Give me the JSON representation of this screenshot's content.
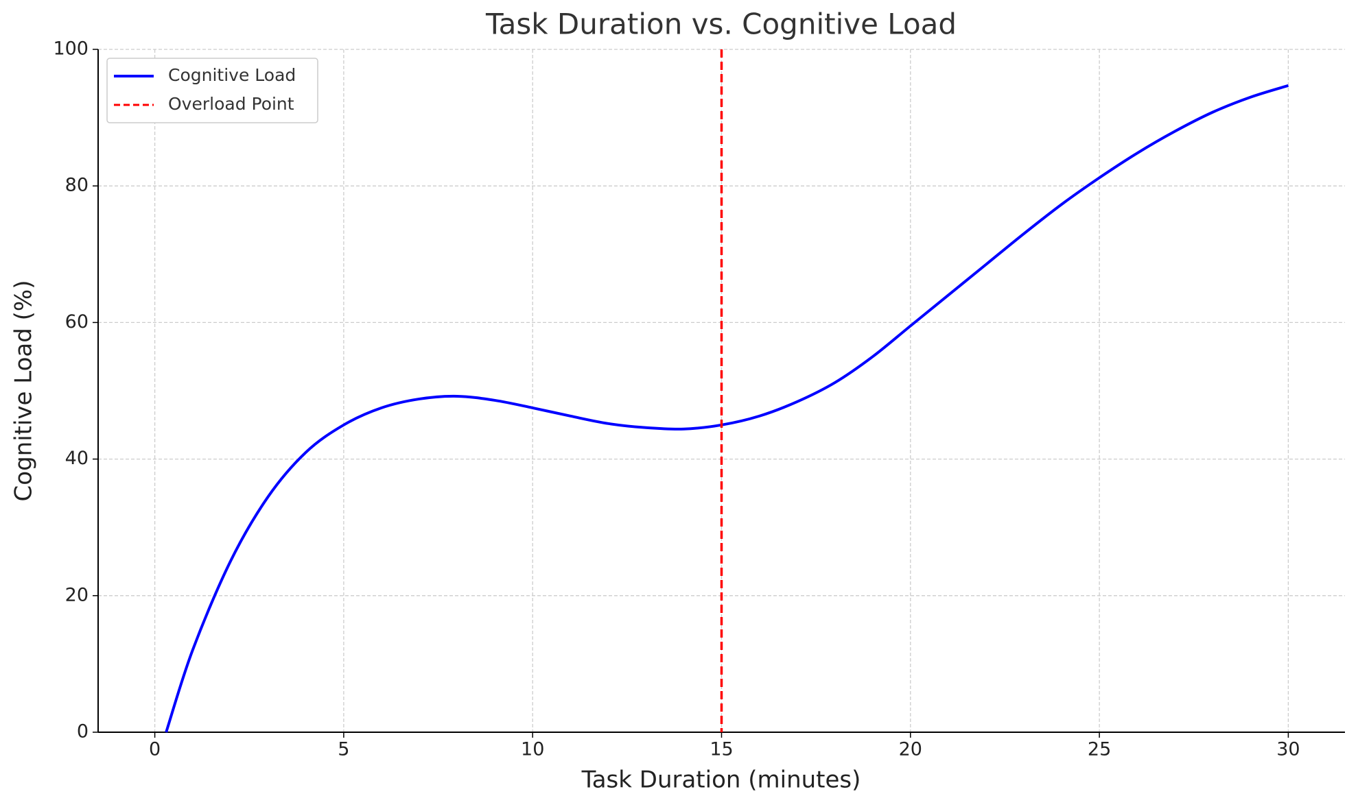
{
  "chart_data": {
    "type": "line",
    "title": "Task Duration vs. Cognitive Load",
    "x_label": "Task Duration (minutes)",
    "y_label": "Cognitive Load (%)",
    "x": [
      0.3,
      1,
      2,
      3,
      4,
      5,
      6,
      7,
      8,
      9,
      10,
      11,
      12,
      13,
      14,
      15,
      16,
      17,
      18,
      19,
      20,
      21,
      22,
      23,
      24,
      25,
      26,
      27,
      28,
      29,
      30
    ],
    "series": [
      {
        "name": "Cognitive Load",
        "color": "#0000ff",
        "values": [
          0,
          12,
          25,
          34.5,
          41,
          45,
          47.5,
          48.8,
          49.2,
          48.6,
          47.5,
          46.3,
          45.2,
          44.6,
          44.4,
          45,
          46.3,
          48.4,
          51.2,
          55,
          59.5,
          64,
          68.5,
          73,
          77.3,
          81.2,
          84.8,
          88,
          90.8,
          93,
          94.7
        ]
      }
    ],
    "vlines": [
      {
        "name": "Overload Point",
        "x": 15,
        "color": "#ff0000"
      }
    ],
    "xlim": [
      -1.5,
      31.5
    ],
    "ylim": [
      0,
      100
    ],
    "xticks": [
      0,
      5,
      10,
      15,
      20,
      25,
      30
    ],
    "yticks": [
      0,
      20,
      40,
      60,
      80,
      100
    ],
    "grid": true,
    "legend": "upper left"
  }
}
